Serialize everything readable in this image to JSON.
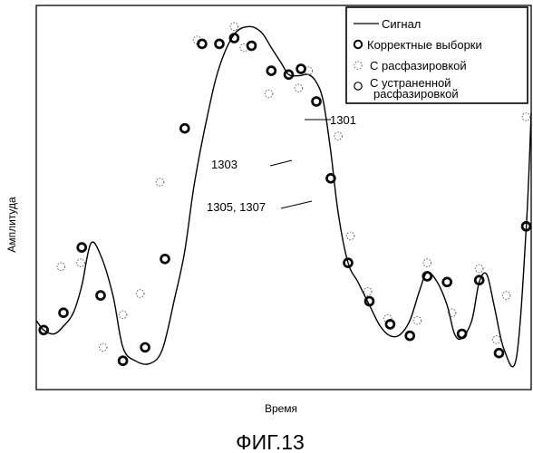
{
  "figure_caption": "ФИГ.13",
  "chart_data": {
    "type": "line",
    "xlabel": "Время",
    "ylabel": "Амплитуда",
    "xlim": [
      0,
      100
    ],
    "ylim": [
      0,
      100
    ],
    "grid": false,
    "legend": {
      "position": "top-right",
      "entries": [
        {
          "label": "Сигнал",
          "marker": "line"
        },
        {
          "label": "Корректные выборки",
          "marker": "bold-circle"
        },
        {
          "label": "С расфазировкой",
          "marker": "dashed-circle"
        },
        {
          "label_lines": [
            "С устраненной",
            "расфазировкой"
          ],
          "marker": "thin-circle"
        }
      ]
    },
    "annotations": [
      {
        "text": "1301"
      },
      {
        "text": "1303"
      },
      {
        "text": "1305, 1307"
      }
    ],
    "series": [
      {
        "role": "signal",
        "x": [
          0,
          1.5,
          3.6,
          5.5,
          7.5,
          9.2,
          11,
          13,
          15.5,
          17.5,
          20,
          23,
          25.5,
          28,
          30,
          32,
          34.7,
          37,
          40,
          43,
          45.5,
          47.5,
          49.5,
          51,
          53,
          55,
          56.6,
          58,
          59.5,
          61,
          63,
          65,
          67.3,
          69.5,
          71.5,
          73.5,
          75.5,
          77.5,
          79,
          81,
          83,
          84.5,
          86,
          88,
          89.5,
          91,
          92.5,
          94.5,
          97,
          99,
          100
        ],
        "y": [
          18,
          15.5,
          14.5,
          16.5,
          20,
          27,
          38,
          35,
          24.5,
          11,
          7.5,
          6.8,
          10.5,
          24,
          36,
          54,
          72,
          84,
          92.5,
          94.5,
          93,
          89,
          85,
          82,
          81.7,
          82,
          80,
          75,
          62,
          46,
          33,
          28,
          22,
          16.5,
          14,
          14.3,
          18,
          26,
          30.5,
          28,
          22,
          14.5,
          13.4,
          18,
          28,
          30,
          22,
          10.5,
          8.2,
          42,
          72
        ]
      },
      {
        "role": "correct",
        "x": [
          1.5,
          5.5,
          9.2,
          13,
          17.5,
          22,
          26,
          30,
          33.5,
          37,
          40,
          43.5,
          47.5,
          51,
          53.5,
          56.6,
          59.5,
          63,
          67.3,
          71.5,
          75.5,
          79,
          83,
          86,
          89.5,
          93.5,
          99
        ],
        "y": [
          15.5,
          20,
          37,
          24.5,
          7.5,
          11,
          34,
          68,
          90,
          90,
          91.5,
          89.5,
          83,
          82,
          83.5,
          75,
          55,
          33,
          23,
          17,
          14,
          29.5,
          28,
          14.5,
          28.5,
          9.5,
          42.5
        ]
      },
      {
        "role": "dephased",
        "x": [
          5,
          9,
          13.5,
          17.5,
          21,
          25,
          32.5,
          40,
          42,
          47,
          53,
          55,
          61,
          63.5,
          67,
          71,
          77,
          79,
          84,
          89.5,
          93,
          95,
          99
        ],
        "y": [
          32,
          33,
          11,
          19.5,
          25,
          54,
          91,
          94.5,
          89,
          77,
          78.5,
          83,
          66,
          40,
          25.5,
          18.5,
          18,
          33,
          20,
          31.5,
          13,
          24.5,
          71
        ]
      },
      {
        "role": "recovered",
        "x": [
          1.5,
          5.5,
          9.2,
          13,
          17.5,
          22,
          26,
          30,
          33.5,
          37,
          40,
          43.5,
          47.5,
          51,
          53.5,
          56.6,
          59.5,
          63,
          67.3,
          71.5,
          75.5,
          79,
          83,
          86,
          89.5,
          93.5,
          99
        ],
        "y": [
          15.5,
          20,
          37,
          24.5,
          7.5,
          11,
          34,
          68,
          90,
          90,
          91.5,
          89.5,
          83,
          82,
          83.5,
          75,
          55,
          33,
          23,
          17,
          14,
          29.5,
          28,
          14.5,
          28.5,
          9.5,
          42.5
        ]
      }
    ]
  }
}
